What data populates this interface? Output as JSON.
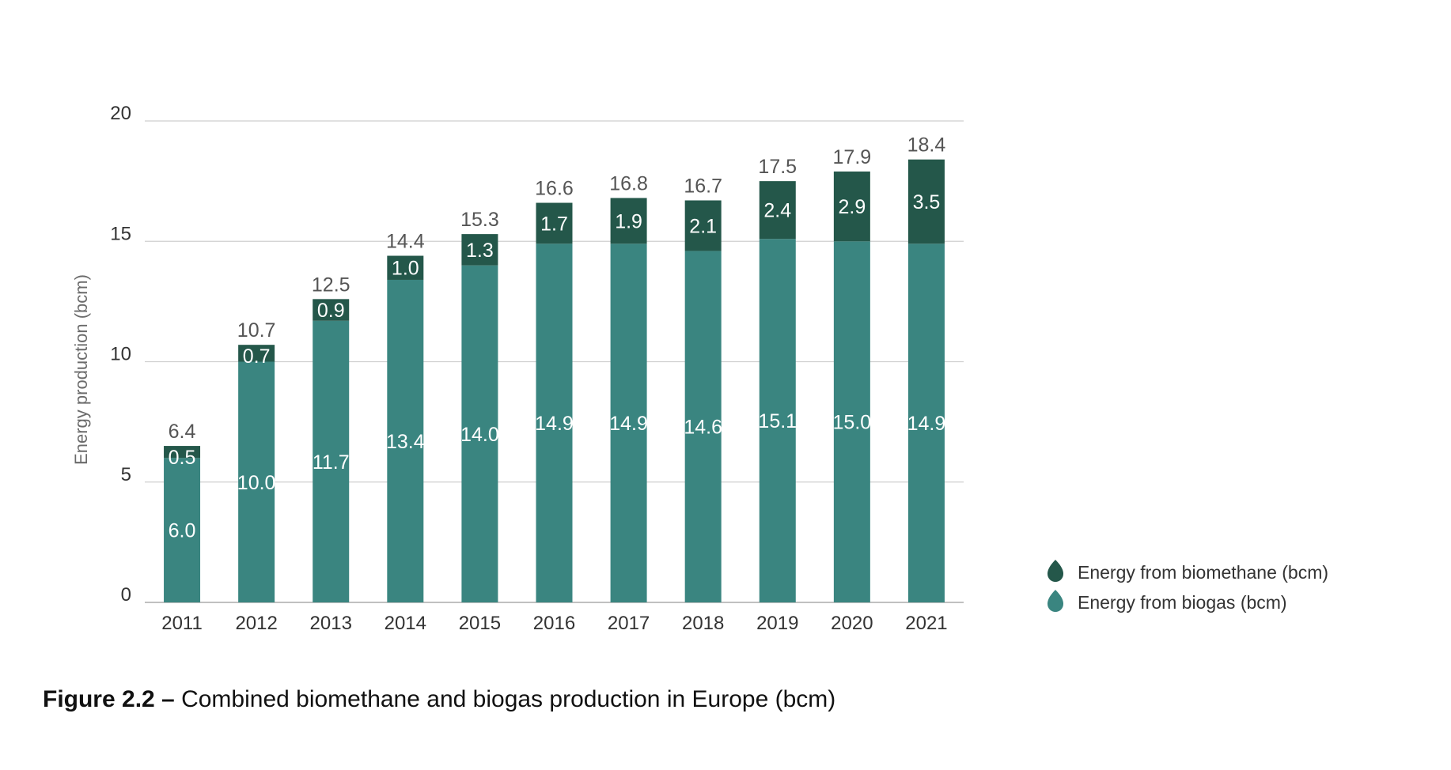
{
  "chart_data": {
    "type": "bar",
    "stacked": true,
    "categories": [
      "2011",
      "2012",
      "2013",
      "2014",
      "2015",
      "2016",
      "2017",
      "2018",
      "2019",
      "2020",
      "2021"
    ],
    "series": [
      {
        "name": "Energy from biogas (bcm)",
        "values": [
          6.0,
          10.0,
          11.7,
          13.4,
          14.0,
          14.9,
          14.9,
          14.6,
          15.1,
          15.0,
          14.9
        ],
        "color": "#3a8580"
      },
      {
        "name": "Energy from biomethane (bcm)",
        "values": [
          0.5,
          0.7,
          0.9,
          1.0,
          1.3,
          1.7,
          1.9,
          2.1,
          2.4,
          2.9,
          3.5
        ],
        "color": "#24574a"
      }
    ],
    "totals": [
      6.4,
      10.7,
      12.5,
      14.4,
      15.3,
      16.6,
      16.8,
      16.7,
      17.5,
      17.9,
      18.4
    ],
    "ylabel": "Energy production (bcm)",
    "xlabel": "",
    "ylim": [
      0,
      20
    ],
    "yticks": [
      0,
      5,
      10,
      15,
      20
    ],
    "grid": true,
    "legend_position": "right"
  },
  "caption": {
    "label": "Figure 2.2 –",
    "text": " Combined biomethane and biogas production in Europe (bcm)"
  }
}
